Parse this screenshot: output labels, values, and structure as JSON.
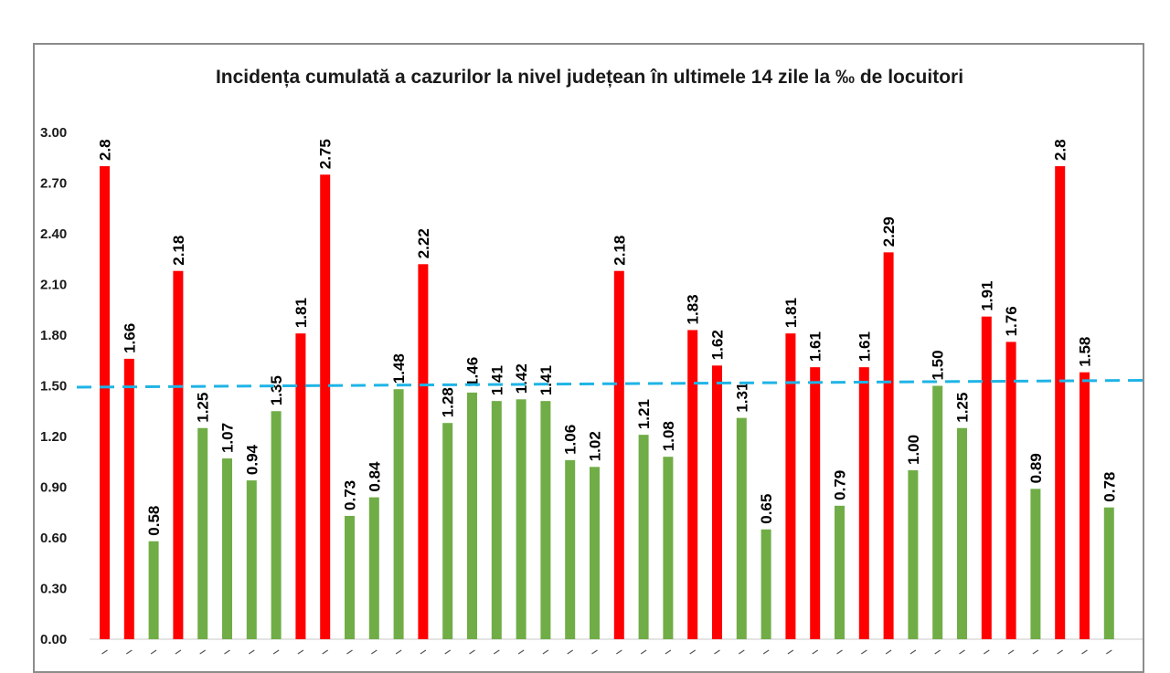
{
  "chart_data": {
    "type": "bar",
    "title": "Incidența cumulată a cazurilor la nivel județean în ultimele 14 zile la ‰ de locuitori",
    "xlabel": "",
    "ylabel": "",
    "ylim": [
      0,
      3
    ],
    "yticks": [
      "0.00",
      "0.30",
      "0.60",
      "0.90",
      "1.20",
      "1.50",
      "1.80",
      "2.10",
      "2.40",
      "2.70",
      "3.00"
    ],
    "grid": false,
    "legend": "none",
    "threshold": 1.5,
    "colors": {
      "above": "#ff0000",
      "below": "#70ad47",
      "threshold": "#1fb4e6"
    },
    "values": [
      2.8,
      1.66,
      0.58,
      2.18,
      1.25,
      1.07,
      0.94,
      1.35,
      1.81,
      2.75,
      0.73,
      0.84,
      1.48,
      2.22,
      1.28,
      1.46,
      1.41,
      1.42,
      1.41,
      1.06,
      1.02,
      2.18,
      1.21,
      1.08,
      1.83,
      1.62,
      1.31,
      0.65,
      1.81,
      1.61,
      0.79,
      1.61,
      2.29,
      1.0,
      1.5,
      1.25,
      1.91,
      1.76,
      0.89,
      2.8,
      1.58,
      0.78
    ],
    "labels": [
      "2.8",
      "1.66",
      "0.58",
      "2.18",
      "1.25",
      "1.07",
      "0.94",
      "1.35",
      "1.81",
      "2.75",
      "0.73",
      "0.84",
      "1.48",
      "2.22",
      "1.28",
      "1.46",
      "1.41",
      "1.42",
      "1.41",
      "1.06",
      "1.02",
      "2.18",
      "1.21",
      "1.08",
      "1.83",
      "1.62",
      "1.31",
      "0.65",
      "1.81",
      "1.61",
      "0.79",
      "1.61",
      "2.29",
      "1.00",
      "1.50",
      "1.25",
      "1.91",
      "1.76",
      "0.89",
      "2.8",
      "1.58",
      "0.78"
    ]
  }
}
